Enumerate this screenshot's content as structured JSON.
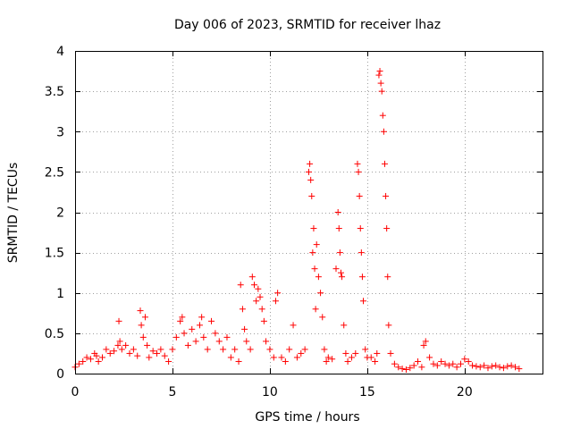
{
  "chart_data": {
    "type": "scatter",
    "title": "Day 006 of 2023, SRMTID for receiver lhaz",
    "xlabel": "GPS time / hours",
    "ylabel": "SRMTID / TECUs",
    "xlim": [
      0,
      24
    ],
    "ylim": [
      0,
      4
    ],
    "xticks": [
      0,
      5,
      10,
      15,
      20
    ],
    "xtick_labels": [
      "0",
      "5",
      "10",
      "15",
      "20"
    ],
    "yticks": [
      0,
      0.5,
      1,
      1.5,
      2,
      2.5,
      3,
      3.5,
      4
    ],
    "ytick_labels": [
      "0",
      "0.5",
      "1",
      "1.5",
      "2",
      "2.5",
      "3",
      "3.5",
      "4"
    ],
    "grid": true,
    "marker": "+",
    "marker_color": "#ff0000",
    "series": [
      {
        "name": "SRMTID",
        "x": [
          0.0,
          0.2,
          0.4,
          0.6,
          0.8,
          1.0,
          1.1,
          1.2,
          1.4,
          1.6,
          1.8,
          2.0,
          2.2,
          2.25,
          2.3,
          2.4,
          2.6,
          2.8,
          3.0,
          3.2,
          3.35,
          3.4,
          3.5,
          3.6,
          3.7,
          3.8,
          4.0,
          4.2,
          4.4,
          4.6,
          4.8,
          5.0,
          5.2,
          5.4,
          5.5,
          5.6,
          5.8,
          6.0,
          6.2,
          6.4,
          6.5,
          6.6,
          6.8,
          7.0,
          7.2,
          7.4,
          7.6,
          7.8,
          8.0,
          8.2,
          8.4,
          8.5,
          8.6,
          8.7,
          8.8,
          9.0,
          9.1,
          9.2,
          9.3,
          9.4,
          9.5,
          9.6,
          9.7,
          9.8,
          10.0,
          10.2,
          10.3,
          10.4,
          10.6,
          10.8,
          11.0,
          11.2,
          11.4,
          11.6,
          11.8,
          12.0,
          12.05,
          12.1,
          12.15,
          12.2,
          12.25,
          12.3,
          12.35,
          12.4,
          12.5,
          12.6,
          12.7,
          12.8,
          12.9,
          13.0,
          13.2,
          13.4,
          13.5,
          13.55,
          13.6,
          13.65,
          13.7,
          13.8,
          13.9,
          14.0,
          14.2,
          14.4,
          14.5,
          14.55,
          14.6,
          14.65,
          14.7,
          14.75,
          14.8,
          14.9,
          15.0,
          15.2,
          15.4,
          15.5,
          15.6,
          15.65,
          15.7,
          15.75,
          15.8,
          15.85,
          15.9,
          15.95,
          16.0,
          16.05,
          16.1,
          16.2,
          16.4,
          16.6,
          16.8,
          17.0,
          17.2,
          17.4,
          17.6,
          17.8,
          17.9,
          18.0,
          18.2,
          18.4,
          18.6,
          18.8,
          19.0,
          19.2,
          19.4,
          19.6,
          19.8,
          20.0,
          20.2,
          20.4,
          20.6,
          20.8,
          21.0,
          21.2,
          21.4,
          21.6,
          21.8,
          22.0,
          22.2,
          22.4,
          22.6,
          22.8
        ],
        "y": [
          0.08,
          0.12,
          0.15,
          0.2,
          0.18,
          0.25,
          0.22,
          0.15,
          0.2,
          0.3,
          0.25,
          0.28,
          0.35,
          0.65,
          0.4,
          0.3,
          0.35,
          0.25,
          0.3,
          0.22,
          0.78,
          0.6,
          0.45,
          0.7,
          0.35,
          0.2,
          0.28,
          0.25,
          0.3,
          0.22,
          0.15,
          0.3,
          0.45,
          0.65,
          0.7,
          0.5,
          0.35,
          0.55,
          0.4,
          0.6,
          0.7,
          0.45,
          0.3,
          0.65,
          0.5,
          0.4,
          0.3,
          0.45,
          0.2,
          0.3,
          0.15,
          1.1,
          0.8,
          0.55,
          0.4,
          0.3,
          1.2,
          1.1,
          0.9,
          1.05,
          0.95,
          0.8,
          0.65,
          0.4,
          0.3,
          0.2,
          0.9,
          1.0,
          0.2,
          0.15,
          0.3,
          0.6,
          0.2,
          0.25,
          0.3,
          2.5,
          2.6,
          2.4,
          2.2,
          1.5,
          1.8,
          1.3,
          0.8,
          1.6,
          1.2,
          1.0,
          0.7,
          0.3,
          0.15,
          0.2,
          0.18,
          1.3,
          2.0,
          1.8,
          1.5,
          1.25,
          1.2,
          0.6,
          0.25,
          0.15,
          0.2,
          0.25,
          2.6,
          2.5,
          2.2,
          1.8,
          1.5,
          1.2,
          0.9,
          0.3,
          0.2,
          0.2,
          0.15,
          0.25,
          3.7,
          3.75,
          3.6,
          3.5,
          3.2,
          3.0,
          2.6,
          2.2,
          1.8,
          1.2,
          0.6,
          0.25,
          0.12,
          0.08,
          0.06,
          0.05,
          0.07,
          0.1,
          0.15,
          0.08,
          0.35,
          0.4,
          0.2,
          0.12,
          0.1,
          0.15,
          0.12,
          0.1,
          0.12,
          0.08,
          0.12,
          0.18,
          0.15,
          0.1,
          0.09,
          0.08,
          0.1,
          0.07,
          0.09,
          0.1,
          0.08,
          0.07,
          0.09,
          0.1,
          0.08,
          0.06
        ]
      }
    ]
  }
}
